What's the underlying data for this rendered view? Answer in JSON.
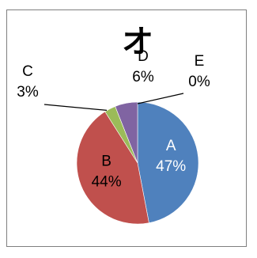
{
  "chart_data": {
    "type": "pie",
    "title": "オ",
    "categories": [
      "A",
      "B",
      "C",
      "D",
      "E"
    ],
    "values": [
      47,
      44,
      3,
      6,
      0
    ],
    "labels": [
      "47%",
      "44%",
      "3%",
      "6%",
      "0%"
    ],
    "colors": [
      "#4f81bd",
      "#c0504d",
      "#9bbb59",
      "#8064a2",
      "#4bacc6"
    ],
    "legend": "none"
  }
}
